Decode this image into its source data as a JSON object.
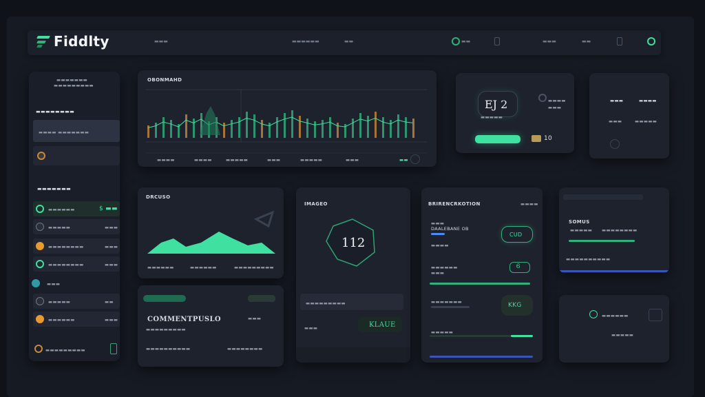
{
  "app": {
    "name": "Fiddlty"
  },
  "topbar": {
    "nav": [
      "▬▬▬",
      "▬▬▬▬▬▬",
      "▬▬",
      "▬▬",
      "▬▬▬",
      "▬▬"
    ]
  },
  "sidebar": {
    "header": "▬▬▬▬▬▬▬",
    "subheader": "▬▬▬▬▬▬▬▬▬",
    "section1": "▬▬▬▬▬▬▬▬",
    "active_item": "▬▬▬▬ ▬▬▬▬▬▬▬",
    "section2": "▬▬▬▬▬▬▬",
    "items": [
      {
        "label": "▬▬▬▬▬▬",
        "value": "$ ▬▬"
      },
      {
        "label": "▬▬▬▬▬",
        "value": "▬▬▬"
      },
      {
        "label": "▬▬▬▬▬▬▬▬",
        "value": "▬▬▬"
      },
      {
        "label": "▬▬▬▬▬▬▬▬",
        "value": "▬▬▬"
      },
      {
        "label": "▬▬▬",
        "value": ""
      },
      {
        "label": "▬▬▬▬▬",
        "value": "▬▬"
      },
      {
        "label": "▬▬▬▬▬▬",
        "value": "▬▬▬"
      }
    ],
    "footer": "▬▬▬▬▬▬▬▬▬"
  },
  "main_chart": {
    "title": "OBONMAHD",
    "x_labels": [
      "▬▬▬▬",
      "▬▬▬▬",
      "▬▬▬▬▬",
      "▬▬▬",
      "▬▬▬▬▬",
      "▬▬▬",
      "▬▬"
    ]
  },
  "stat_card": {
    "value": "EJ 2",
    "sub": "▬▬▬▬▬",
    "badge": "10",
    "side": [
      "▬▬▬▬",
      "▬▬▬"
    ]
  },
  "small_card": {
    "rows": [
      "▬▬▬",
      "▬▬▬▬",
      "▬▬▬",
      "▬▬▬▬▬"
    ]
  },
  "area_card": {
    "title": "DRCUSO",
    "labels": [
      "▬▬▬▬▬▬",
      "▬▬▬▬▬▬",
      "▬▬▬▬▬▬▬▬▬"
    ]
  },
  "gauge_card": {
    "title": "IMAGEO",
    "value": "112",
    "stat": "KLAUE",
    "rows": [
      "▬▬▬▬▬▬▬▬▬",
      "▬▬▬"
    ]
  },
  "lower_left": {
    "title": "COMMENTPUSLO",
    "rows": [
      "▬▬▬▬▬▬▬▬▬",
      "▬▬▬▬▬▬▬▬▬▬",
      "▬▬▬▬▬▬▬▬"
    ],
    "badge": "▬▬▬"
  },
  "middle_card": {
    "title": "BRIRENCRKOTION",
    "tag": "▬▬▬▬",
    "rows": [
      "▬▬▬",
      "DAALEBANE OB",
      "▬▬▬▬",
      "▬▬▬▬▬▬",
      "▬▬▬",
      "▬▬▬▬▬▬▬",
      "▬▬▬▬▬"
    ],
    "badges": [
      "CUD",
      "Ꮾ",
      "KKG"
    ]
  },
  "right_card": {
    "title": "SOMUS",
    "rows": [
      "▬▬▬▬▬",
      "▬▬▬▬▬▬▬▬",
      "▬▬▬▬▬▬▬▬▬▬"
    ]
  },
  "right_bottom": {
    "rows": [
      "▬▬▬▬▬▬",
      "▬▬▬▬▬"
    ]
  }
}
